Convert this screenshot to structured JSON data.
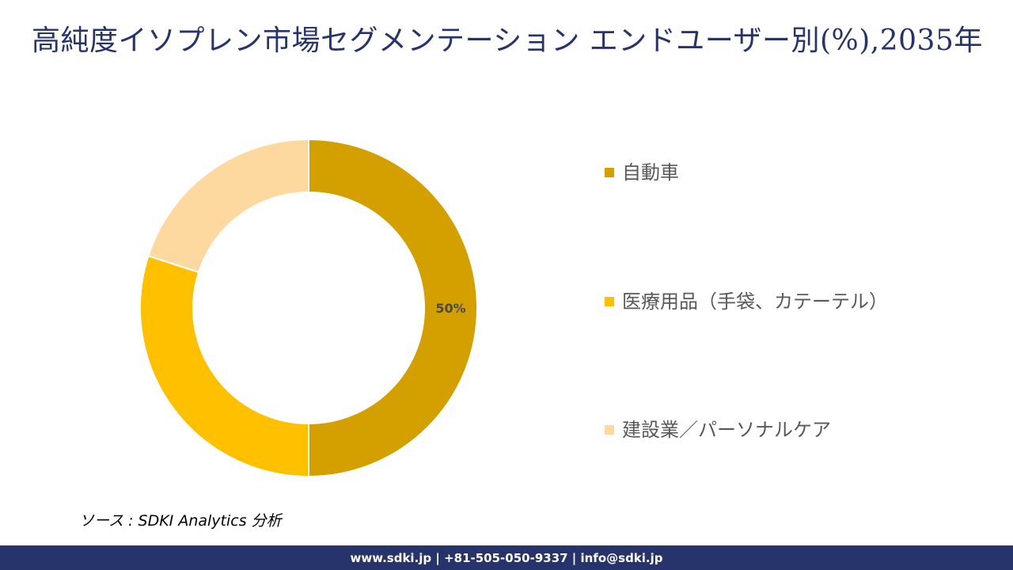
{
  "header": {
    "title": "高純度イソプレン市場セグメンテーション エンドユーザー別(%),2035年"
  },
  "chart_data": {
    "type": "pie",
    "subtype": "donut",
    "title": "高純度イソプレン市場セグメンテーション エンドユーザー別(%),2035年",
    "categories": [
      "自動車",
      "医療用品（手袋、カテーテル）",
      "建設業／パーソナルケア"
    ],
    "values": [
      50,
      30,
      20
    ],
    "unit": "%",
    "colors": [
      "#D4A000",
      "#FFC000",
      "#FDD9A0"
    ],
    "data_labels": [
      "50%",
      "",
      ""
    ],
    "start_angle_deg": 0,
    "direction": "clockwise",
    "legend_position": "right"
  },
  "legend": {
    "items": [
      {
        "label": "自動車",
        "color": "#D4A000"
      },
      {
        "label": "医療用品（手袋、カテーテル）",
        "color": "#FFC000"
      },
      {
        "label": "建設業／パーソナルケア",
        "color": "#FDD9A0"
      }
    ]
  },
  "source": {
    "text": "ソース : SDKI Analytics  分析"
  },
  "footer": {
    "contact": "www.sdki.jp | +81-505-050-9337 | info@sdki.jp",
    "background": "#26346B"
  }
}
